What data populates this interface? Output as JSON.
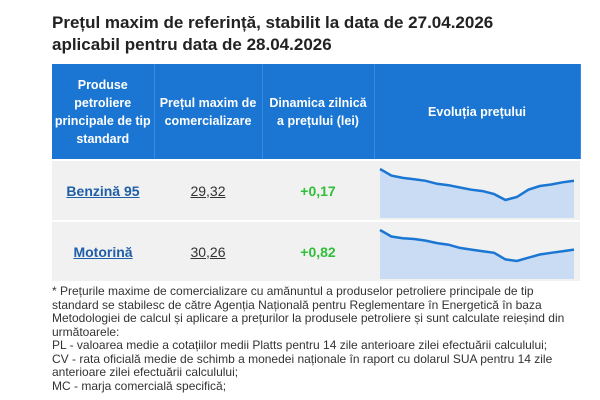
{
  "header": {
    "title": [
      "Prețul maxim de referință, stabilit la data de 27.04.2026",
      "aplicabil pentru data de 28.04.2026"
    ]
  },
  "table": {
    "columns": [
      "Produse petroliere principale de tip standard",
      "Prețul maxim de comercializare",
      "Dinamica zilnică a prețului (lei)",
      "Evoluția prețului"
    ],
    "rows": [
      {
        "product": "Benzină 95",
        "price": "29,32",
        "change": "+0,17",
        "trend": [
          62,
          53,
          50,
          48,
          46,
          42,
          40,
          37,
          34,
          32,
          28,
          20,
          24,
          34,
          39,
          41,
          44,
          46
        ]
      },
      {
        "product": "Motorină",
        "price": "30,26",
        "change": "+0,82",
        "trend": [
          60,
          52,
          50,
          49,
          47,
          44,
          42,
          38,
          36,
          34,
          32,
          24,
          22,
          26,
          30,
          32,
          34,
          36
        ]
      }
    ]
  },
  "footnote": [
    "* Prețurile maxime de comercializare cu amănuntul a produselor petroliere principale de tip standard se stabilesc de către Agenția Națională pentru Reglementare în Energetică în baza Metodologiei de calcul și aplicare a prețurilor la produsele petroliere și sunt calculate reieșind din următoarele:",
    "PL - valoarea medie a cotațiilor medii Platts pentru 14 zile anterioare zilei efectuării calculului;",
    "CV - rata oficială medie de schimb a monedei naționale în raport cu dolarul SUA pentru 14 zile anterioare zilei efectuării calculului;",
    "MC - marja comercială specifică;"
  ]
}
